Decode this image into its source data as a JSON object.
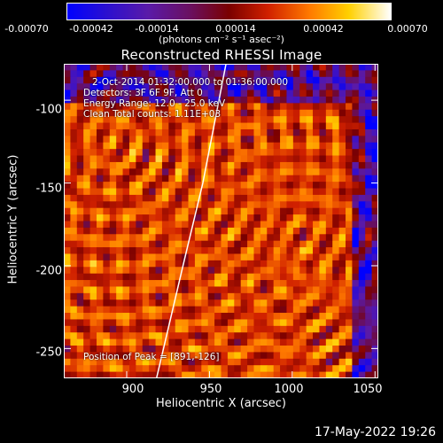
{
  "colorbar": {
    "ticks": [
      "-0.00070",
      "-0.00042",
      "-0.00014",
      "0.00014",
      "0.00042",
      "0.00070"
    ],
    "units": "(photons cm⁻² s⁻¹ asec⁻²)"
  },
  "annotations": {
    "time": "2-Oct-2014 01:32:00.000 to 01:36:00.000",
    "detectors": "Detectors: 3F 6F 9F, Att 0",
    "energy": "Energy Range: 12.0 - 25.0 keV",
    "clean": "Clean     Total counts: 1.11E+03",
    "peak": "Position of Peak = [891,-126]"
  },
  "footer": {
    "timestamp": "17-May-2022 19:26"
  },
  "chart_data": {
    "type": "heatmap",
    "title": "Reconstructed RHESSI Image",
    "xlabel": "Heliocentric X (arcsec)",
    "ylabel": "Heliocentric Y (arcsec)",
    "xlim": [
      862,
      1052
    ],
    "ylim": [
      -268,
      -78
    ],
    "x_ticks": [
      900,
      950,
      1000,
      1050
    ],
    "y_ticks": [
      -100,
      -150,
      -200,
      -250
    ],
    "colorbar_range": [
      -0.0007,
      0.0007
    ],
    "colormap": [
      "#0000ff",
      "#5a1aa8",
      "#7a0000",
      "#d02000",
      "#ff7a00",
      "#ffd000",
      "#ffffff"
    ],
    "peak_position": [
      891,
      -126
    ],
    "limb_curve": {
      "points": [
        [
          918,
          -268
        ],
        [
          934,
          -200
        ],
        [
          946,
          -150
        ],
        [
          960,
          -78
        ]
      ]
    }
  }
}
